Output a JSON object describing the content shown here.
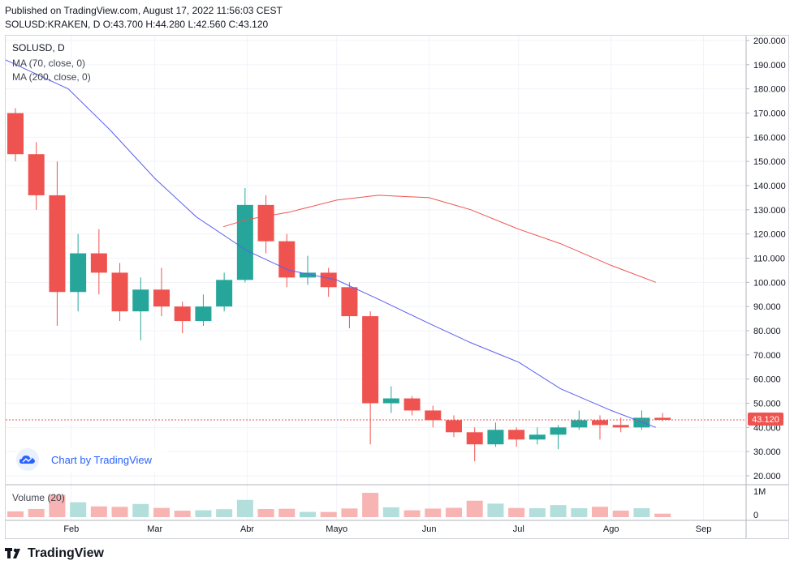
{
  "header": {
    "published_line": "Published on TradingView.com, August 17, 2022 11:56:03 CEST",
    "ohlc_line": "SOLUSD:KRAKEN, D  O:43.700  H:44.280  L:42.560  C:43.120"
  },
  "legend": {
    "symbol": "SOLUSD, D",
    "ma70": "MA (70, close, 0)",
    "ma200": "MA (200, close, 0)",
    "volume": "Volume (20)"
  },
  "badge": {
    "text": "Chart by TradingView"
  },
  "footer": {
    "brand": "TradingView"
  },
  "colors": {
    "up": "#26a69a",
    "down": "#ef5350",
    "up_volume": "#b2dfdb",
    "down_volume": "#f7b4b3",
    "ma70": "#5b5ff0",
    "ma200": "#ef5350",
    "price_line": "#ef5350",
    "grid": "#f0f3fa",
    "axis_text": "#131722"
  },
  "chart_data": {
    "type": "candlestick",
    "symbol": "SOLUSD:KRAKEN",
    "interval": "D",
    "y_ticks": [
      "200.000",
      "190.000",
      "180.000",
      "170.000",
      "160.000",
      "150.000",
      "140.000",
      "130.000",
      "120.000",
      "110.000",
      "100.000",
      "90.000",
      "80.000",
      "70.000",
      "60.000",
      "50.000",
      "40.000",
      "30.000",
      "20.000"
    ],
    "y_range": [
      20,
      200
    ],
    "x_ticks": [
      "Feb",
      "Mar",
      "Abr",
      "Mayo",
      "Jun",
      "Jul",
      "Ago",
      "Sep"
    ],
    "x_range": [
      "2022-01-10",
      "2022-09-15"
    ],
    "last_price_label": "43.120",
    "last_price": 43.12,
    "volume_ticks": [
      "1M",
      "0"
    ],
    "candles_weekly_approx": [
      {
        "date": "2022-01-10",
        "o": 170,
        "h": 172,
        "l": 150,
        "c": 153
      },
      {
        "date": "2022-01-17",
        "o": 153,
        "h": 158,
        "l": 130,
        "c": 136
      },
      {
        "date": "2022-01-24",
        "o": 136,
        "h": 150,
        "l": 82,
        "c": 96
      },
      {
        "date": "2022-01-31",
        "o": 96,
        "h": 120,
        "l": 88,
        "c": 112
      },
      {
        "date": "2022-02-07",
        "o": 112,
        "h": 122,
        "l": 95,
        "c": 104
      },
      {
        "date": "2022-02-14",
        "o": 104,
        "h": 108,
        "l": 84,
        "c": 88
      },
      {
        "date": "2022-02-21",
        "o": 88,
        "h": 102,
        "l": 76,
        "c": 97
      },
      {
        "date": "2022-02-28",
        "o": 97,
        "h": 106,
        "l": 86,
        "c": 90
      },
      {
        "date": "2022-03-07",
        "o": 90,
        "h": 92,
        "l": 79,
        "c": 84
      },
      {
        "date": "2022-03-14",
        "o": 84,
        "h": 95,
        "l": 82,
        "c": 90
      },
      {
        "date": "2022-03-21",
        "o": 90,
        "h": 104,
        "l": 88,
        "c": 101
      },
      {
        "date": "2022-03-28",
        "o": 101,
        "h": 139,
        "l": 100,
        "c": 132
      },
      {
        "date": "2022-04-04",
        "o": 132,
        "h": 136,
        "l": 112,
        "c": 117
      },
      {
        "date": "2022-04-11",
        "o": 117,
        "h": 120,
        "l": 98,
        "c": 102
      },
      {
        "date": "2022-04-18",
        "o": 102,
        "h": 111,
        "l": 99,
        "c": 104
      },
      {
        "date": "2022-04-25",
        "o": 104,
        "h": 106,
        "l": 94,
        "c": 98
      },
      {
        "date": "2022-05-02",
        "o": 98,
        "h": 100,
        "l": 81,
        "c": 86
      },
      {
        "date": "2022-05-09",
        "o": 86,
        "h": 88,
        "l": 33,
        "c": 50
      },
      {
        "date": "2022-05-16",
        "o": 50,
        "h": 57,
        "l": 46,
        "c": 52
      },
      {
        "date": "2022-05-23",
        "o": 52,
        "h": 53,
        "l": 45,
        "c": 47
      },
      {
        "date": "2022-05-30",
        "o": 47,
        "h": 49,
        "l": 40,
        "c": 43
      },
      {
        "date": "2022-06-06",
        "o": 43,
        "h": 45,
        "l": 36,
        "c": 38
      },
      {
        "date": "2022-06-13",
        "o": 38,
        "h": 40,
        "l": 26,
        "c": 33
      },
      {
        "date": "2022-06-20",
        "o": 33,
        "h": 42,
        "l": 32,
        "c": 39
      },
      {
        "date": "2022-06-27",
        "o": 39,
        "h": 40,
        "l": 32,
        "c": 35
      },
      {
        "date": "2022-07-04",
        "o": 35,
        "h": 40,
        "l": 33,
        "c": 37
      },
      {
        "date": "2022-07-11",
        "o": 37,
        "h": 41,
        "l": 31,
        "c": 40
      },
      {
        "date": "2022-07-18",
        "o": 40,
        "h": 47,
        "l": 39,
        "c": 43
      },
      {
        "date": "2022-07-25",
        "o": 43,
        "h": 45,
        "l": 35,
        "c": 41
      },
      {
        "date": "2022-08-01",
        "o": 41,
        "h": 44,
        "l": 38,
        "c": 40
      },
      {
        "date": "2022-08-08",
        "o": 40,
        "h": 47,
        "l": 39,
        "c": 44
      },
      {
        "date": "2022-08-15",
        "o": 44,
        "h": 46,
        "l": 42.56,
        "c": 43.12
      }
    ],
    "series": [
      {
        "name": "MA (70, close, 0)",
        "points": [
          [
            "2022-01-10",
            192
          ],
          [
            "2022-01-31",
            180
          ],
          [
            "2022-02-14",
            163
          ],
          [
            "2022-03-01",
            143
          ],
          [
            "2022-03-15",
            127
          ],
          [
            "2022-04-01",
            113
          ],
          [
            "2022-04-15",
            105
          ],
          [
            "2022-05-01",
            101
          ],
          [
            "2022-05-15",
            93
          ],
          [
            "2022-06-01",
            83
          ],
          [
            "2022-06-15",
            75
          ],
          [
            "2022-07-01",
            67
          ],
          [
            "2022-07-15",
            56
          ],
          [
            "2022-08-01",
            47
          ],
          [
            "2022-08-16",
            40
          ]
        ]
      },
      {
        "name": "MA (200, close, 0)",
        "points": [
          [
            "2022-03-24",
            123
          ],
          [
            "2022-04-01",
            126
          ],
          [
            "2022-04-15",
            129
          ],
          [
            "2022-05-01",
            134
          ],
          [
            "2022-05-15",
            136
          ],
          [
            "2022-06-01",
            135
          ],
          [
            "2022-06-15",
            130
          ],
          [
            "2022-07-01",
            122
          ],
          [
            "2022-07-15",
            116
          ],
          [
            "2022-08-01",
            107
          ],
          [
            "2022-08-16",
            100
          ]
        ]
      }
    ]
  }
}
